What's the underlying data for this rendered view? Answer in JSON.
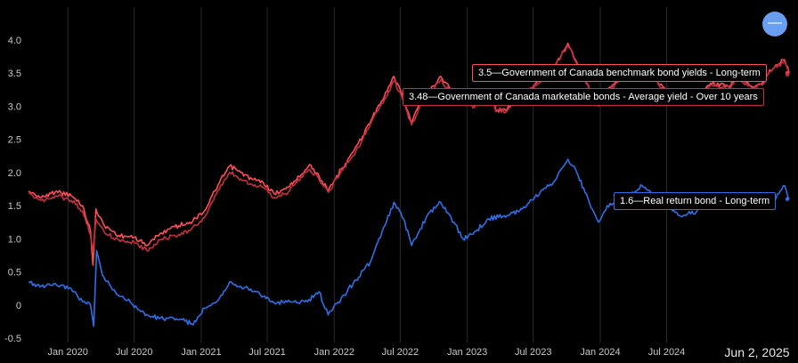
{
  "chart_data": {
    "type": "line",
    "y_ticks": [
      "4.0",
      "3.5",
      "3.0",
      "2.5",
      "2.0",
      "1.5",
      "1.0",
      "0.5",
      "0",
      "-0.5"
    ],
    "x_ticks": [
      "Jan 2020",
      "Jul 2020",
      "Jan 2021",
      "Jul 2021",
      "Jan 2022",
      "Jul 2022",
      "Jan 2023",
      "Jul 2023",
      "Jan 2024",
      "Jul 2024"
    ],
    "ylim": [
      -0.5,
      4.2
    ],
    "xlim": [
      "2019-09-15",
      "2025-06-02"
    ],
    "grid": "vertical",
    "cursor_date": "Jun 2, 2025",
    "series": [
      {
        "name": "Government of Canada benchmark bond yields - Long-term",
        "color": "#ff4d5a",
        "last_value": "3.5",
        "points": [
          [
            "2019-09-15",
            1.72
          ],
          [
            "2019-10-20",
            1.62
          ],
          [
            "2019-12-01",
            1.72
          ],
          [
            "2020-01-10",
            1.65
          ],
          [
            "2020-02-10",
            1.5
          ],
          [
            "2020-03-03",
            1.12
          ],
          [
            "2020-03-10",
            0.6
          ],
          [
            "2020-03-18",
            1.45
          ],
          [
            "2020-04-10",
            1.2
          ],
          [
            "2020-05-20",
            1.05
          ],
          [
            "2020-07-01",
            1.02
          ],
          [
            "2020-08-05",
            0.9
          ],
          [
            "2020-09-10",
            1.08
          ],
          [
            "2020-10-20",
            1.18
          ],
          [
            "2020-12-01",
            1.25
          ],
          [
            "2021-01-10",
            1.42
          ],
          [
            "2021-02-20",
            1.85
          ],
          [
            "2021-03-20",
            2.1
          ],
          [
            "2021-04-20",
            2.0
          ],
          [
            "2021-05-20",
            1.9
          ],
          [
            "2021-06-20",
            1.85
          ],
          [
            "2021-07-20",
            1.68
          ],
          [
            "2021-08-20",
            1.75
          ],
          [
            "2021-09-20",
            1.9
          ],
          [
            "2021-10-25",
            2.12
          ],
          [
            "2021-11-20",
            1.95
          ],
          [
            "2021-12-15",
            1.72
          ],
          [
            "2022-01-20",
            2.05
          ],
          [
            "2022-02-20",
            2.3
          ],
          [
            "2022-03-20",
            2.55
          ],
          [
            "2022-04-20",
            2.9
          ],
          [
            "2022-05-15",
            3.1
          ],
          [
            "2022-06-14",
            3.45
          ],
          [
            "2022-07-05",
            3.2
          ],
          [
            "2022-08-01",
            2.75
          ],
          [
            "2022-08-25",
            3.05
          ],
          [
            "2022-10-20",
            3.45
          ],
          [
            "2022-11-25",
            3.2
          ],
          [
            "2022-12-20",
            3.2
          ],
          [
            "2023-01-20",
            3.0
          ],
          [
            "2023-03-08",
            3.25
          ],
          [
            "2023-03-20",
            2.95
          ],
          [
            "2023-04-20",
            2.95
          ],
          [
            "2023-05-20",
            3.1
          ],
          [
            "2023-06-20",
            3.25
          ],
          [
            "2023-08-20",
            3.55
          ],
          [
            "2023-10-04",
            3.95
          ],
          [
            "2023-10-25",
            3.7
          ],
          [
            "2023-11-20",
            3.4
          ],
          [
            "2023-12-27",
            3.02
          ],
          [
            "2024-01-20",
            3.25
          ],
          [
            "2024-02-20",
            3.4
          ],
          [
            "2024-04-25",
            3.6
          ],
          [
            "2024-06-20",
            3.3
          ],
          [
            "2024-08-05",
            3.05
          ],
          [
            "2024-09-20",
            3.1
          ],
          [
            "2024-10-30",
            3.35
          ],
          [
            "2024-12-20",
            3.3
          ],
          [
            "2025-01-15",
            3.45
          ],
          [
            "2025-02-20",
            3.3
          ],
          [
            "2025-03-20",
            3.35
          ],
          [
            "2025-04-10",
            3.55
          ],
          [
            "2025-05-21",
            3.7
          ],
          [
            "2025-06-02",
            3.5
          ]
        ]
      },
      {
        "name": "Government of Canada marketable bonds - Average yield - Over 10 years",
        "color": "#c4303d",
        "last_value": "3.48",
        "points": [
          [
            "2019-09-15",
            1.68
          ],
          [
            "2019-10-20",
            1.58
          ],
          [
            "2019-12-01",
            1.65
          ],
          [
            "2020-01-10",
            1.58
          ],
          [
            "2020-02-10",
            1.42
          ],
          [
            "2020-03-03",
            1.05
          ],
          [
            "2020-03-10",
            0.85
          ],
          [
            "2020-03-18",
            1.3
          ],
          [
            "2020-04-10",
            1.1
          ],
          [
            "2020-05-20",
            0.98
          ],
          [
            "2020-07-01",
            0.95
          ],
          [
            "2020-08-05",
            0.82
          ],
          [
            "2020-09-10",
            0.98
          ],
          [
            "2020-10-20",
            1.05
          ],
          [
            "2020-12-01",
            1.12
          ],
          [
            "2021-01-10",
            1.32
          ],
          [
            "2021-02-20",
            1.75
          ],
          [
            "2021-03-20",
            2.0
          ],
          [
            "2021-04-20",
            1.9
          ],
          [
            "2021-05-20",
            1.82
          ],
          [
            "2021-06-20",
            1.78
          ],
          [
            "2021-07-20",
            1.62
          ],
          [
            "2021-08-20",
            1.68
          ],
          [
            "2021-09-20",
            1.85
          ],
          [
            "2021-10-25",
            2.05
          ],
          [
            "2021-11-20",
            1.9
          ],
          [
            "2021-12-15",
            1.7
          ],
          [
            "2022-01-20",
            2.02
          ],
          [
            "2022-02-20",
            2.25
          ],
          [
            "2022-03-20",
            2.5
          ],
          [
            "2022-04-20",
            2.85
          ],
          [
            "2022-05-15",
            3.05
          ],
          [
            "2022-06-14",
            3.38
          ],
          [
            "2022-07-05",
            3.15
          ],
          [
            "2022-08-01",
            2.72
          ],
          [
            "2022-08-25",
            3.02
          ],
          [
            "2022-10-20",
            3.4
          ],
          [
            "2022-11-25",
            3.15
          ],
          [
            "2022-12-20",
            3.18
          ],
          [
            "2023-01-20",
            2.98
          ],
          [
            "2023-03-08",
            3.2
          ],
          [
            "2023-03-20",
            2.92
          ],
          [
            "2023-04-20",
            2.93
          ],
          [
            "2023-05-20",
            3.08
          ],
          [
            "2023-06-20",
            3.22
          ],
          [
            "2023-08-20",
            3.52
          ],
          [
            "2023-10-04",
            3.92
          ],
          [
            "2023-10-25",
            3.68
          ],
          [
            "2023-11-20",
            3.38
          ],
          [
            "2023-12-27",
            3.0
          ],
          [
            "2024-01-20",
            3.22
          ],
          [
            "2024-02-20",
            3.38
          ],
          [
            "2024-04-25",
            3.58
          ],
          [
            "2024-06-20",
            3.28
          ],
          [
            "2024-08-05",
            3.02
          ],
          [
            "2024-09-20",
            3.08
          ],
          [
            "2024-10-30",
            3.32
          ],
          [
            "2024-12-20",
            3.28
          ],
          [
            "2025-01-15",
            3.42
          ],
          [
            "2025-02-20",
            3.28
          ],
          [
            "2025-03-20",
            3.32
          ],
          [
            "2025-04-10",
            3.52
          ],
          [
            "2025-05-21",
            3.68
          ],
          [
            "2025-06-02",
            3.48
          ]
        ]
      },
      {
        "name": "Real return bond - Long-term",
        "color": "#2f6fe6",
        "last_value": "1.6",
        "points": [
          [
            "2019-09-15",
            0.35
          ],
          [
            "2019-10-20",
            0.28
          ],
          [
            "2019-12-01",
            0.3
          ],
          [
            "2020-01-10",
            0.25
          ],
          [
            "2020-02-10",
            0.05
          ],
          [
            "2020-03-03",
            0.0
          ],
          [
            "2020-03-12",
            -0.32
          ],
          [
            "2020-03-20",
            0.82
          ],
          [
            "2020-04-05",
            0.45
          ],
          [
            "2020-05-10",
            0.2
          ],
          [
            "2020-06-20",
            0.05
          ],
          [
            "2020-07-20",
            -0.1
          ],
          [
            "2020-08-15",
            -0.18
          ],
          [
            "2020-10-01",
            -0.2
          ],
          [
            "2020-11-10",
            -0.22
          ],
          [
            "2020-12-10",
            -0.3
          ],
          [
            "2021-01-10",
            -0.05
          ],
          [
            "2021-02-20",
            0.1
          ],
          [
            "2021-03-20",
            0.35
          ],
          [
            "2021-04-20",
            0.28
          ],
          [
            "2021-06-01",
            0.2
          ],
          [
            "2021-07-20",
            0.03
          ],
          [
            "2021-09-01",
            0.05
          ],
          [
            "2021-10-20",
            0.05
          ],
          [
            "2021-11-20",
            0.2
          ],
          [
            "2021-12-15",
            -0.15
          ],
          [
            "2022-01-20",
            0.1
          ],
          [
            "2022-03-01",
            0.38
          ],
          [
            "2022-04-10",
            0.65
          ],
          [
            "2022-05-20",
            1.2
          ],
          [
            "2022-06-14",
            1.55
          ],
          [
            "2022-07-10",
            1.3
          ],
          [
            "2022-08-01",
            0.9
          ],
          [
            "2022-08-25",
            1.15
          ],
          [
            "2022-09-20",
            1.4
          ],
          [
            "2022-10-20",
            1.55
          ],
          [
            "2022-11-25",
            1.25
          ],
          [
            "2022-12-20",
            1.0
          ],
          [
            "2023-01-20",
            1.1
          ],
          [
            "2023-03-01",
            1.3
          ],
          [
            "2023-04-20",
            1.35
          ],
          [
            "2023-06-01",
            1.45
          ],
          [
            "2023-07-20",
            1.7
          ],
          [
            "2023-08-25",
            1.85
          ],
          [
            "2023-10-04",
            2.2
          ],
          [
            "2023-10-25",
            2.05
          ],
          [
            "2023-11-20",
            1.7
          ],
          [
            "2023-12-27",
            1.25
          ],
          [
            "2024-01-20",
            1.5
          ],
          [
            "2024-02-20",
            1.55
          ],
          [
            "2024-04-25",
            1.8
          ],
          [
            "2024-06-20",
            1.55
          ],
          [
            "2024-08-05",
            1.35
          ],
          [
            "2024-09-20",
            1.4
          ],
          [
            "2024-10-30",
            1.65
          ],
          [
            "2024-12-20",
            1.5
          ],
          [
            "2025-01-15",
            1.6
          ],
          [
            "2025-02-20",
            1.45
          ],
          [
            "2025-03-20",
            1.55
          ],
          [
            "2025-04-10",
            1.5
          ],
          [
            "2025-05-21",
            1.8
          ],
          [
            "2025-06-02",
            1.6
          ]
        ]
      }
    ]
  },
  "callouts": [
    "3.5—Government of Canada benchmark bond yields - Long-term",
    "3.48—Government of Canada marketable bonds - Average yield - Over 10 years",
    "1.6—Real return bond - Long-term"
  ],
  "zoom_button": {
    "label": "—",
    "icon": "minus-icon"
  }
}
